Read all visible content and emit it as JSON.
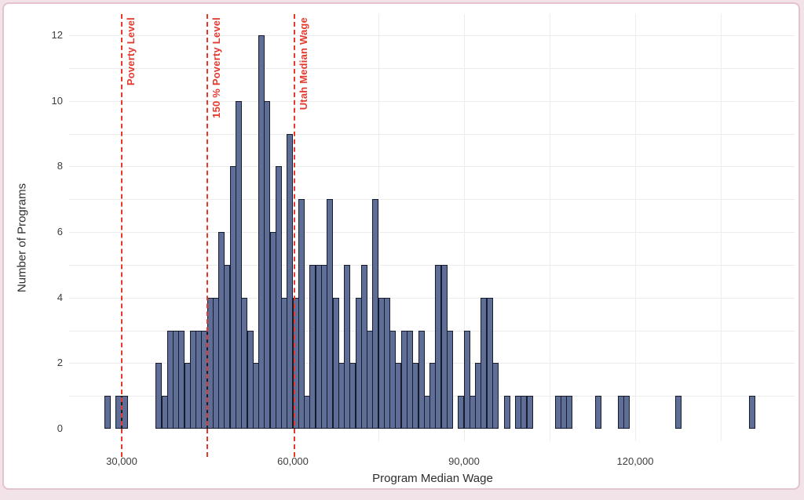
{
  "page": {
    "background_color": "#f2e3e9",
    "card_border_color": "#e4c2ce",
    "card_background": "#ffffff"
  },
  "chart_data": {
    "type": "bar",
    "subtype": "histogram",
    "title": "",
    "xlabel": "Program Median Wage",
    "ylabel": "Number of Programs",
    "bin_width": 1000,
    "xlim": [
      24000,
      148000
    ],
    "ylim": [
      0,
      12.6
    ],
    "grid": true,
    "legend_position": "none",
    "x_ticks": [
      {
        "label": "30,000",
        "value": 30000
      },
      {
        "label": "60,000",
        "value": 60000
      },
      {
        "label": "90,000",
        "value": 90000
      },
      {
        "label": "120,000",
        "value": 120000
      }
    ],
    "y_ticks": [
      {
        "label": "0",
        "value": 0
      },
      {
        "label": "2",
        "value": 2
      },
      {
        "label": "4",
        "value": 4
      },
      {
        "label": "6",
        "value": 6
      },
      {
        "label": "8",
        "value": 8
      },
      {
        "label": "10",
        "value": 10
      },
      {
        "label": "12",
        "value": 12
      }
    ],
    "minor_gridline_values_x": [
      75000,
      90000,
      105000,
      120000,
      135000
    ],
    "bins": [
      {
        "wage": 27000,
        "count": 1
      },
      {
        "wage": 29000,
        "count": 1
      },
      {
        "wage": 30000,
        "count": 1
      },
      {
        "wage": 36000,
        "count": 2
      },
      {
        "wage": 37000,
        "count": 1
      },
      {
        "wage": 38000,
        "count": 3
      },
      {
        "wage": 39000,
        "count": 3
      },
      {
        "wage": 40000,
        "count": 3
      },
      {
        "wage": 41000,
        "count": 2
      },
      {
        "wage": 42000,
        "count": 3
      },
      {
        "wage": 43000,
        "count": 3
      },
      {
        "wage": 44000,
        "count": 3
      },
      {
        "wage": 45000,
        "count": 4
      },
      {
        "wage": 46000,
        "count": 4
      },
      {
        "wage": 47000,
        "count": 6
      },
      {
        "wage": 48000,
        "count": 5
      },
      {
        "wage": 49000,
        "count": 8
      },
      {
        "wage": 50000,
        "count": 10
      },
      {
        "wage": 51000,
        "count": 4
      },
      {
        "wage": 52000,
        "count": 3
      },
      {
        "wage": 53000,
        "count": 2
      },
      {
        "wage": 54000,
        "count": 12
      },
      {
        "wage": 55000,
        "count": 10
      },
      {
        "wage": 56000,
        "count": 6
      },
      {
        "wage": 57000,
        "count": 8
      },
      {
        "wage": 58000,
        "count": 4
      },
      {
        "wage": 59000,
        "count": 9
      },
      {
        "wage": 60000,
        "count": 4
      },
      {
        "wage": 61000,
        "count": 7
      },
      {
        "wage": 62000,
        "count": 1
      },
      {
        "wage": 63000,
        "count": 5
      },
      {
        "wage": 64000,
        "count": 5
      },
      {
        "wage": 65000,
        "count": 5
      },
      {
        "wage": 66000,
        "count": 7
      },
      {
        "wage": 67000,
        "count": 4
      },
      {
        "wage": 68000,
        "count": 2
      },
      {
        "wage": 69000,
        "count": 5
      },
      {
        "wage": 70000,
        "count": 2
      },
      {
        "wage": 71000,
        "count": 4
      },
      {
        "wage": 72000,
        "count": 5
      },
      {
        "wage": 73000,
        "count": 3
      },
      {
        "wage": 74000,
        "count": 7
      },
      {
        "wage": 75000,
        "count": 4
      },
      {
        "wage": 76000,
        "count": 4
      },
      {
        "wage": 77000,
        "count": 3
      },
      {
        "wage": 78000,
        "count": 2
      },
      {
        "wage": 79000,
        "count": 3
      },
      {
        "wage": 80000,
        "count": 3
      },
      {
        "wage": 81000,
        "count": 2
      },
      {
        "wage": 82000,
        "count": 3
      },
      {
        "wage": 83000,
        "count": 1
      },
      {
        "wage": 84000,
        "count": 2
      },
      {
        "wage": 85000,
        "count": 5
      },
      {
        "wage": 86000,
        "count": 5
      },
      {
        "wage": 87000,
        "count": 3
      },
      {
        "wage": 89000,
        "count": 1
      },
      {
        "wage": 90000,
        "count": 3
      },
      {
        "wage": 91000,
        "count": 1
      },
      {
        "wage": 92000,
        "count": 2
      },
      {
        "wage": 93000,
        "count": 4
      },
      {
        "wage": 94000,
        "count": 4
      },
      {
        "wage": 95000,
        "count": 2
      },
      {
        "wage": 97000,
        "count": 1
      },
      {
        "wage": 99000,
        "count": 1
      },
      {
        "wage": 100000,
        "count": 1
      },
      {
        "wage": 101000,
        "count": 1
      },
      {
        "wage": 106000,
        "count": 1
      },
      {
        "wage": 107000,
        "count": 1
      },
      {
        "wage": 108000,
        "count": 1
      },
      {
        "wage": 113000,
        "count": 1
      },
      {
        "wage": 117000,
        "count": 1
      },
      {
        "wage": 118000,
        "count": 1
      },
      {
        "wage": 127000,
        "count": 1
      },
      {
        "wage": 140000,
        "count": 1
      }
    ],
    "ref_lines": [
      {
        "label": "Poverty Level",
        "x": 30000
      },
      {
        "label": "150 % Poverty Level",
        "x": 45000
      },
      {
        "label": "Utah Median Wage",
        "x": 60300
      }
    ],
    "colors": {
      "bar_fill": "#5f6e96",
      "bar_border": "#161b2e",
      "ref_line": "#e6392e",
      "gridline": "#ebebeb",
      "tick_text": "#3d3d3d",
      "axis_title_text": "#2e2e2e"
    }
  }
}
